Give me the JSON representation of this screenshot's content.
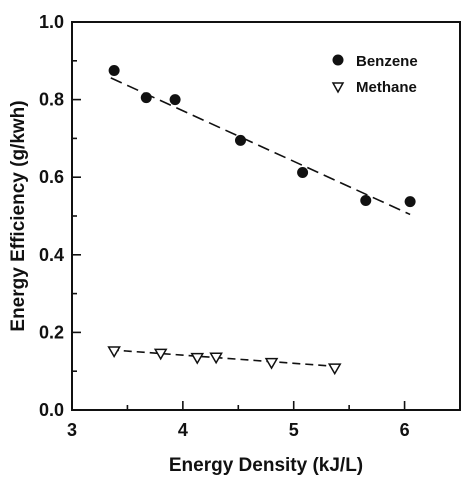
{
  "chart_data": {
    "type": "scatter",
    "xlabel": "Energy Density (kJ/L)",
    "ylabel": "Energy Efficiency (g/kwh)",
    "xlim": [
      3,
      6.5
    ],
    "ylim": [
      0,
      1.0
    ],
    "xticks": [
      "3",
      "4",
      "5",
      "6"
    ],
    "yticks": [
      "0.0",
      "0.2",
      "0.4",
      "0.6",
      "0.8",
      "1.0"
    ],
    "legend_position": "top-right",
    "series": [
      {
        "name": "Benzene",
        "marker": "filled-circle",
        "color": "#111111",
        "x": [
          3.38,
          3.67,
          3.93,
          4.52,
          5.08,
          5.65,
          6.05
        ],
        "y": [
          0.875,
          0.805,
          0.8,
          0.695,
          0.612,
          0.54,
          0.537
        ],
        "trend": {
          "style": "dashed",
          "x": [
            3.35,
            6.05
          ],
          "y": [
            0.856,
            0.504
          ]
        }
      },
      {
        "name": "Methane",
        "marker": "open-triangle-down",
        "color": "#111111",
        "x": [
          3.38,
          3.8,
          4.13,
          4.3,
          4.8,
          5.37
        ],
        "y": [
          0.152,
          0.146,
          0.135,
          0.136,
          0.122,
          0.108
        ],
        "trend": {
          "style": "dashed",
          "x": [
            3.35,
            5.4
          ],
          "y": [
            0.155,
            0.112
          ]
        }
      }
    ]
  }
}
